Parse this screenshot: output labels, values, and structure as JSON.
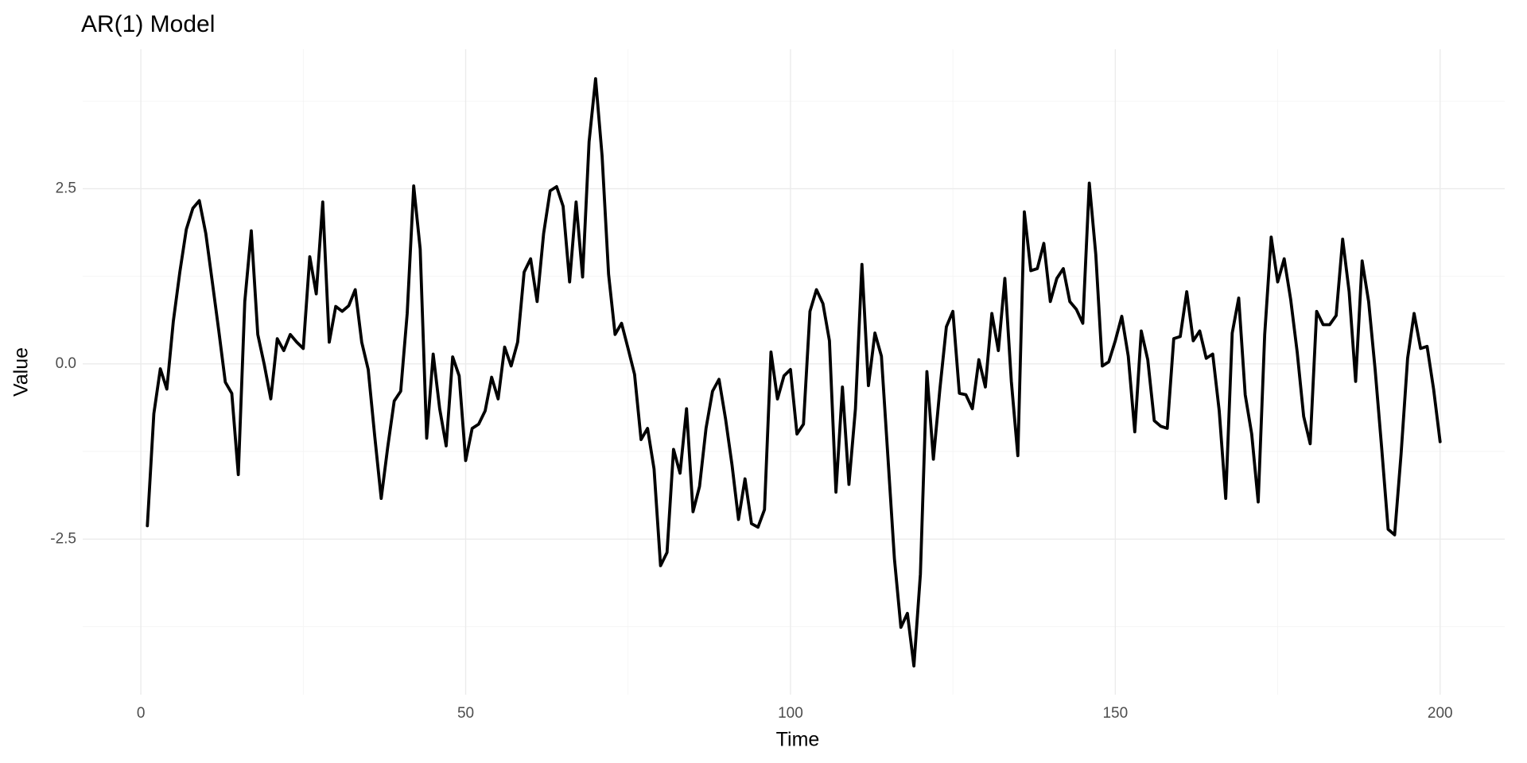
{
  "chart_data": {
    "type": "line",
    "title": "AR(1) Model",
    "x_label": "Time",
    "y_label": "Value",
    "x": [
      1,
      2,
      3,
      4,
      5,
      6,
      7,
      8,
      9,
      10,
      11,
      12,
      13,
      14,
      15,
      16,
      17,
      18,
      19,
      20,
      21,
      22,
      23,
      24,
      25,
      26,
      27,
      28,
      29,
      30,
      31,
      32,
      33,
      34,
      35,
      36,
      37,
      38,
      39,
      40,
      41,
      42,
      43,
      44,
      45,
      46,
      47,
      48,
      49,
      50,
      51,
      52,
      53,
      54,
      55,
      56,
      57,
      58,
      59,
      60,
      61,
      62,
      63,
      64,
      65,
      66,
      67,
      68,
      69,
      70,
      71,
      72,
      73,
      74,
      75,
      76,
      77,
      78,
      79,
      80,
      81,
      82,
      83,
      84,
      85,
      86,
      87,
      88,
      89,
      90,
      91,
      92,
      93,
      94,
      95,
      96,
      97,
      98,
      99,
      100,
      101,
      102,
      103,
      104,
      105,
      106,
      107,
      108,
      109,
      110,
      111,
      112,
      113,
      114,
      115,
      116,
      117,
      118,
      119,
      120,
      121,
      122,
      123,
      124,
      125,
      126,
      127,
      128,
      129,
      130,
      131,
      132,
      133,
      134,
      135,
      136,
      137,
      138,
      139,
      140,
      141,
      142,
      143,
      144,
      145,
      146,
      147,
      148,
      149,
      150,
      151,
      152,
      153,
      154,
      155,
      156,
      157,
      158,
      159,
      160,
      161,
      162,
      163,
      164,
      165,
      166,
      167,
      168,
      169,
      170,
      171,
      172,
      173,
      174,
      175,
      176,
      177,
      178,
      179,
      180,
      181,
      182,
      183,
      184,
      185,
      186,
      187,
      188,
      189,
      190,
      191,
      192,
      193,
      194,
      195,
      196,
      197,
      198,
      199,
      200
    ],
    "series": [
      {
        "name": "Value",
        "color": "#000000",
        "values": [
          -2.31,
          -0.71,
          -0.07,
          -0.36,
          0.61,
          1.31,
          1.92,
          2.22,
          2.33,
          1.86,
          1.17,
          0.47,
          -0.26,
          -0.42,
          -1.58,
          0.89,
          1.9,
          0.42,
          -0.01,
          -0.5,
          0.36,
          0.19,
          0.42,
          0.31,
          0.22,
          1.53,
          1.0,
          2.31,
          0.31,
          0.82,
          0.75,
          0.83,
          1.06,
          0.31,
          -0.08,
          -1.03,
          -1.92,
          -1.19,
          -0.53,
          -0.39,
          0.72,
          2.54,
          1.64,
          -1.06,
          0.14,
          -0.64,
          -1.17,
          0.1,
          -0.17,
          -1.38,
          -0.92,
          -0.86,
          -0.67,
          -0.19,
          -0.5,
          0.24,
          -0.03,
          0.31,
          1.31,
          1.5,
          0.89,
          1.86,
          2.47,
          2.53,
          2.25,
          1.17,
          2.31,
          1.24,
          3.17,
          4.07,
          2.97,
          1.28,
          0.42,
          0.58,
          0.22,
          -0.15,
          -1.08,
          -0.92,
          -1.5,
          -2.88,
          -2.69,
          -1.22,
          -1.56,
          -0.64,
          -2.11,
          -1.75,
          -0.92,
          -0.39,
          -0.22,
          -0.78,
          -1.44,
          -2.22,
          -1.64,
          -2.28,
          -2.33,
          -2.08,
          0.17,
          -0.5,
          -0.17,
          -0.08,
          -1.0,
          -0.86,
          0.75,
          1.06,
          0.86,
          0.33,
          -1.83,
          -0.33,
          -1.72,
          -0.64,
          1.42,
          -0.31,
          0.44,
          0.11,
          -1.33,
          -2.78,
          -3.76,
          -3.56,
          -4.31,
          -3.0,
          -0.11,
          -1.36,
          -0.36,
          0.53,
          0.75,
          -0.42,
          -0.44,
          -0.64,
          0.06,
          -0.33,
          0.72,
          0.19,
          1.22,
          -0.25,
          -1.31,
          2.17,
          1.33,
          1.36,
          1.72,
          0.89,
          1.22,
          1.36,
          0.89,
          0.78,
          0.58,
          2.58,
          1.56,
          -0.03,
          0.03,
          0.33,
          0.68,
          0.11,
          -0.97,
          0.47,
          0.06,
          -0.81,
          -0.89,
          -0.92,
          0.36,
          0.39,
          1.03,
          0.33,
          0.47,
          0.08,
          0.14,
          -0.67,
          -1.92,
          0.44,
          0.94,
          -0.44,
          -1.0,
          -1.97,
          0.42,
          1.81,
          1.17,
          1.5,
          0.92,
          0.17,
          -0.75,
          -1.14,
          0.75,
          0.56,
          0.56,
          0.69,
          1.78,
          1.03,
          -0.25,
          1.47,
          0.89,
          -0.08,
          -1.19,
          -2.36,
          -2.44,
          -1.28,
          0.08,
          0.72,
          0.22,
          0.25,
          -0.36,
          -1.11
        ]
      }
    ],
    "xlim": [
      -8.95,
      209.95
    ],
    "ylim": [
      -4.72,
      4.49
    ],
    "xticks": [
      0,
      50,
      100,
      150,
      200
    ],
    "yticks": [
      -2.5,
      {
        "value": 0,
        "label": "0.0"
      },
      2.5
    ],
    "minor_xticks": [
      25,
      75,
      125,
      175
    ],
    "minor_yticks": [
      -3.75,
      -1.25,
      1.25,
      3.75
    ],
    "grid": true
  }
}
